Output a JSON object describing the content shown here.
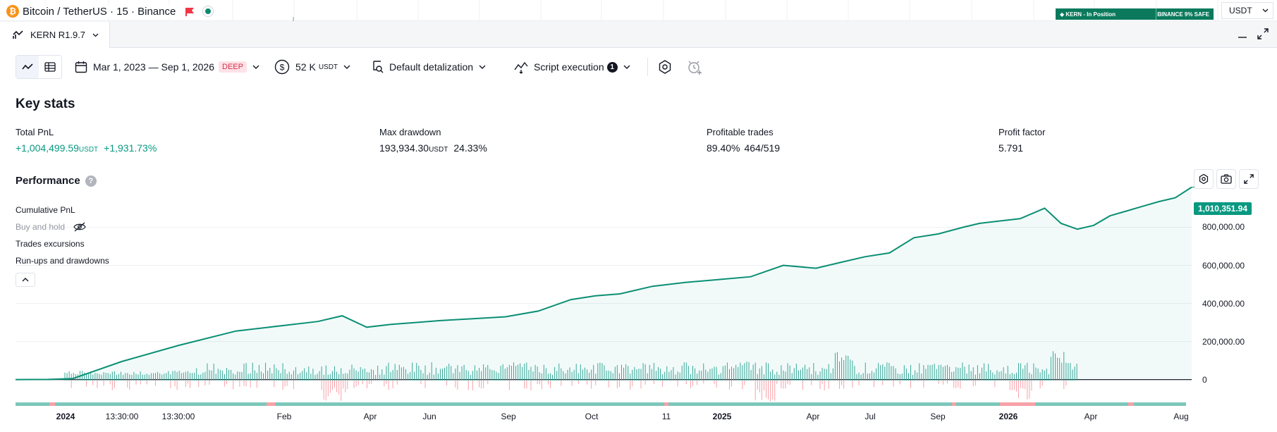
{
  "symbol": {
    "coin_letter": "₿",
    "title": "Bitcoin / TetherUS · 15 · Binance"
  },
  "kern_pill": {
    "left": "◆ KERN - In Position",
    "right": "BINANCE 9% SAFE"
  },
  "currency": {
    "value": "USDT"
  },
  "tab": {
    "label": "KERN R1.9.7"
  },
  "toolbar": {
    "date_range": "Mar 1, 2023 — Sep 1, 2026",
    "deep_badge": "DEEP",
    "capital": "52 K",
    "capital_unit": "USDT",
    "detalization": "Default detalization",
    "script_execution": "Script execution",
    "script_count": "1"
  },
  "key_stats": {
    "title": "Key stats",
    "total_pnl": {
      "label": "Total PnL",
      "value": "+1,004,499.59",
      "unit": "USDT",
      "percent": "+1,931.73%"
    },
    "max_drawdown": {
      "label": "Max drawdown",
      "value": "193,934.30",
      "unit": "USDT",
      "percent": "24.33%"
    },
    "profitable_trades": {
      "label": "Profitable trades",
      "percent": "89.40%",
      "ratio": "464/519"
    },
    "profit_factor": {
      "label": "Profit factor",
      "value": "5.791"
    }
  },
  "performance": {
    "title": "Performance",
    "help": "?",
    "legend": [
      "Cumulative PnL",
      "Buy and hold",
      "Trades excursions",
      "Run-ups and drawdowns"
    ],
    "last_value": "1,010,351.94"
  },
  "colors": {
    "accent": "#089981",
    "drawdown": "#f23645",
    "line": "#0b8f74"
  },
  "chart_data": {
    "type": "line",
    "title": "",
    "y_ticks": [
      "800,000.00",
      "600,000.00",
      "400,000.00",
      "200,000.00",
      "0"
    ],
    "y_tick_values": [
      800000,
      600000,
      400000,
      200000,
      0
    ],
    "x_ticks": [
      "2024",
      "13:30:00",
      "13:30:00",
      "Feb",
      "Apr",
      "Jun",
      "Sep",
      "Oct",
      "11",
      "2025",
      "Apr",
      "Jul",
      "Sep",
      "2026",
      "Apr",
      "Aug"
    ],
    "bold_x_ticks": [
      "2024",
      "2025",
      "2026"
    ],
    "ylim": [
      -5000,
      1020000
    ],
    "series": [
      {
        "name": "Cumulative PnL",
        "x": [
          0,
          40,
          70,
          130,
          200,
          270,
          330,
          370,
          400,
          430,
          460,
          490,
          520,
          560,
          600,
          640,
          680,
          710,
          740,
          780,
          820,
          860,
          900,
          940,
          980,
          1010,
          1040,
          1070,
          1100,
          1130,
          1160,
          1180,
          1200,
          1230,
          1260,
          1280,
          1300,
          1320,
          1340,
          1360,
          1380,
          1400,
          1420,
          1440
        ],
        "y": [
          0,
          1000,
          5000,
          95000,
          180000,
          255000,
          285000,
          305000,
          335000,
          275000,
          290000,
          300000,
          310000,
          320000,
          330000,
          360000,
          420000,
          440000,
          450000,
          490000,
          510000,
          525000,
          540000,
          600000,
          585000,
          615000,
          645000,
          665000,
          745000,
          765000,
          800000,
          820000,
          830000,
          845000,
          900000,
          820000,
          790000,
          810000,
          860000,
          885000,
          910000,
          935000,
          955000,
          1010351
        ]
      }
    ]
  }
}
